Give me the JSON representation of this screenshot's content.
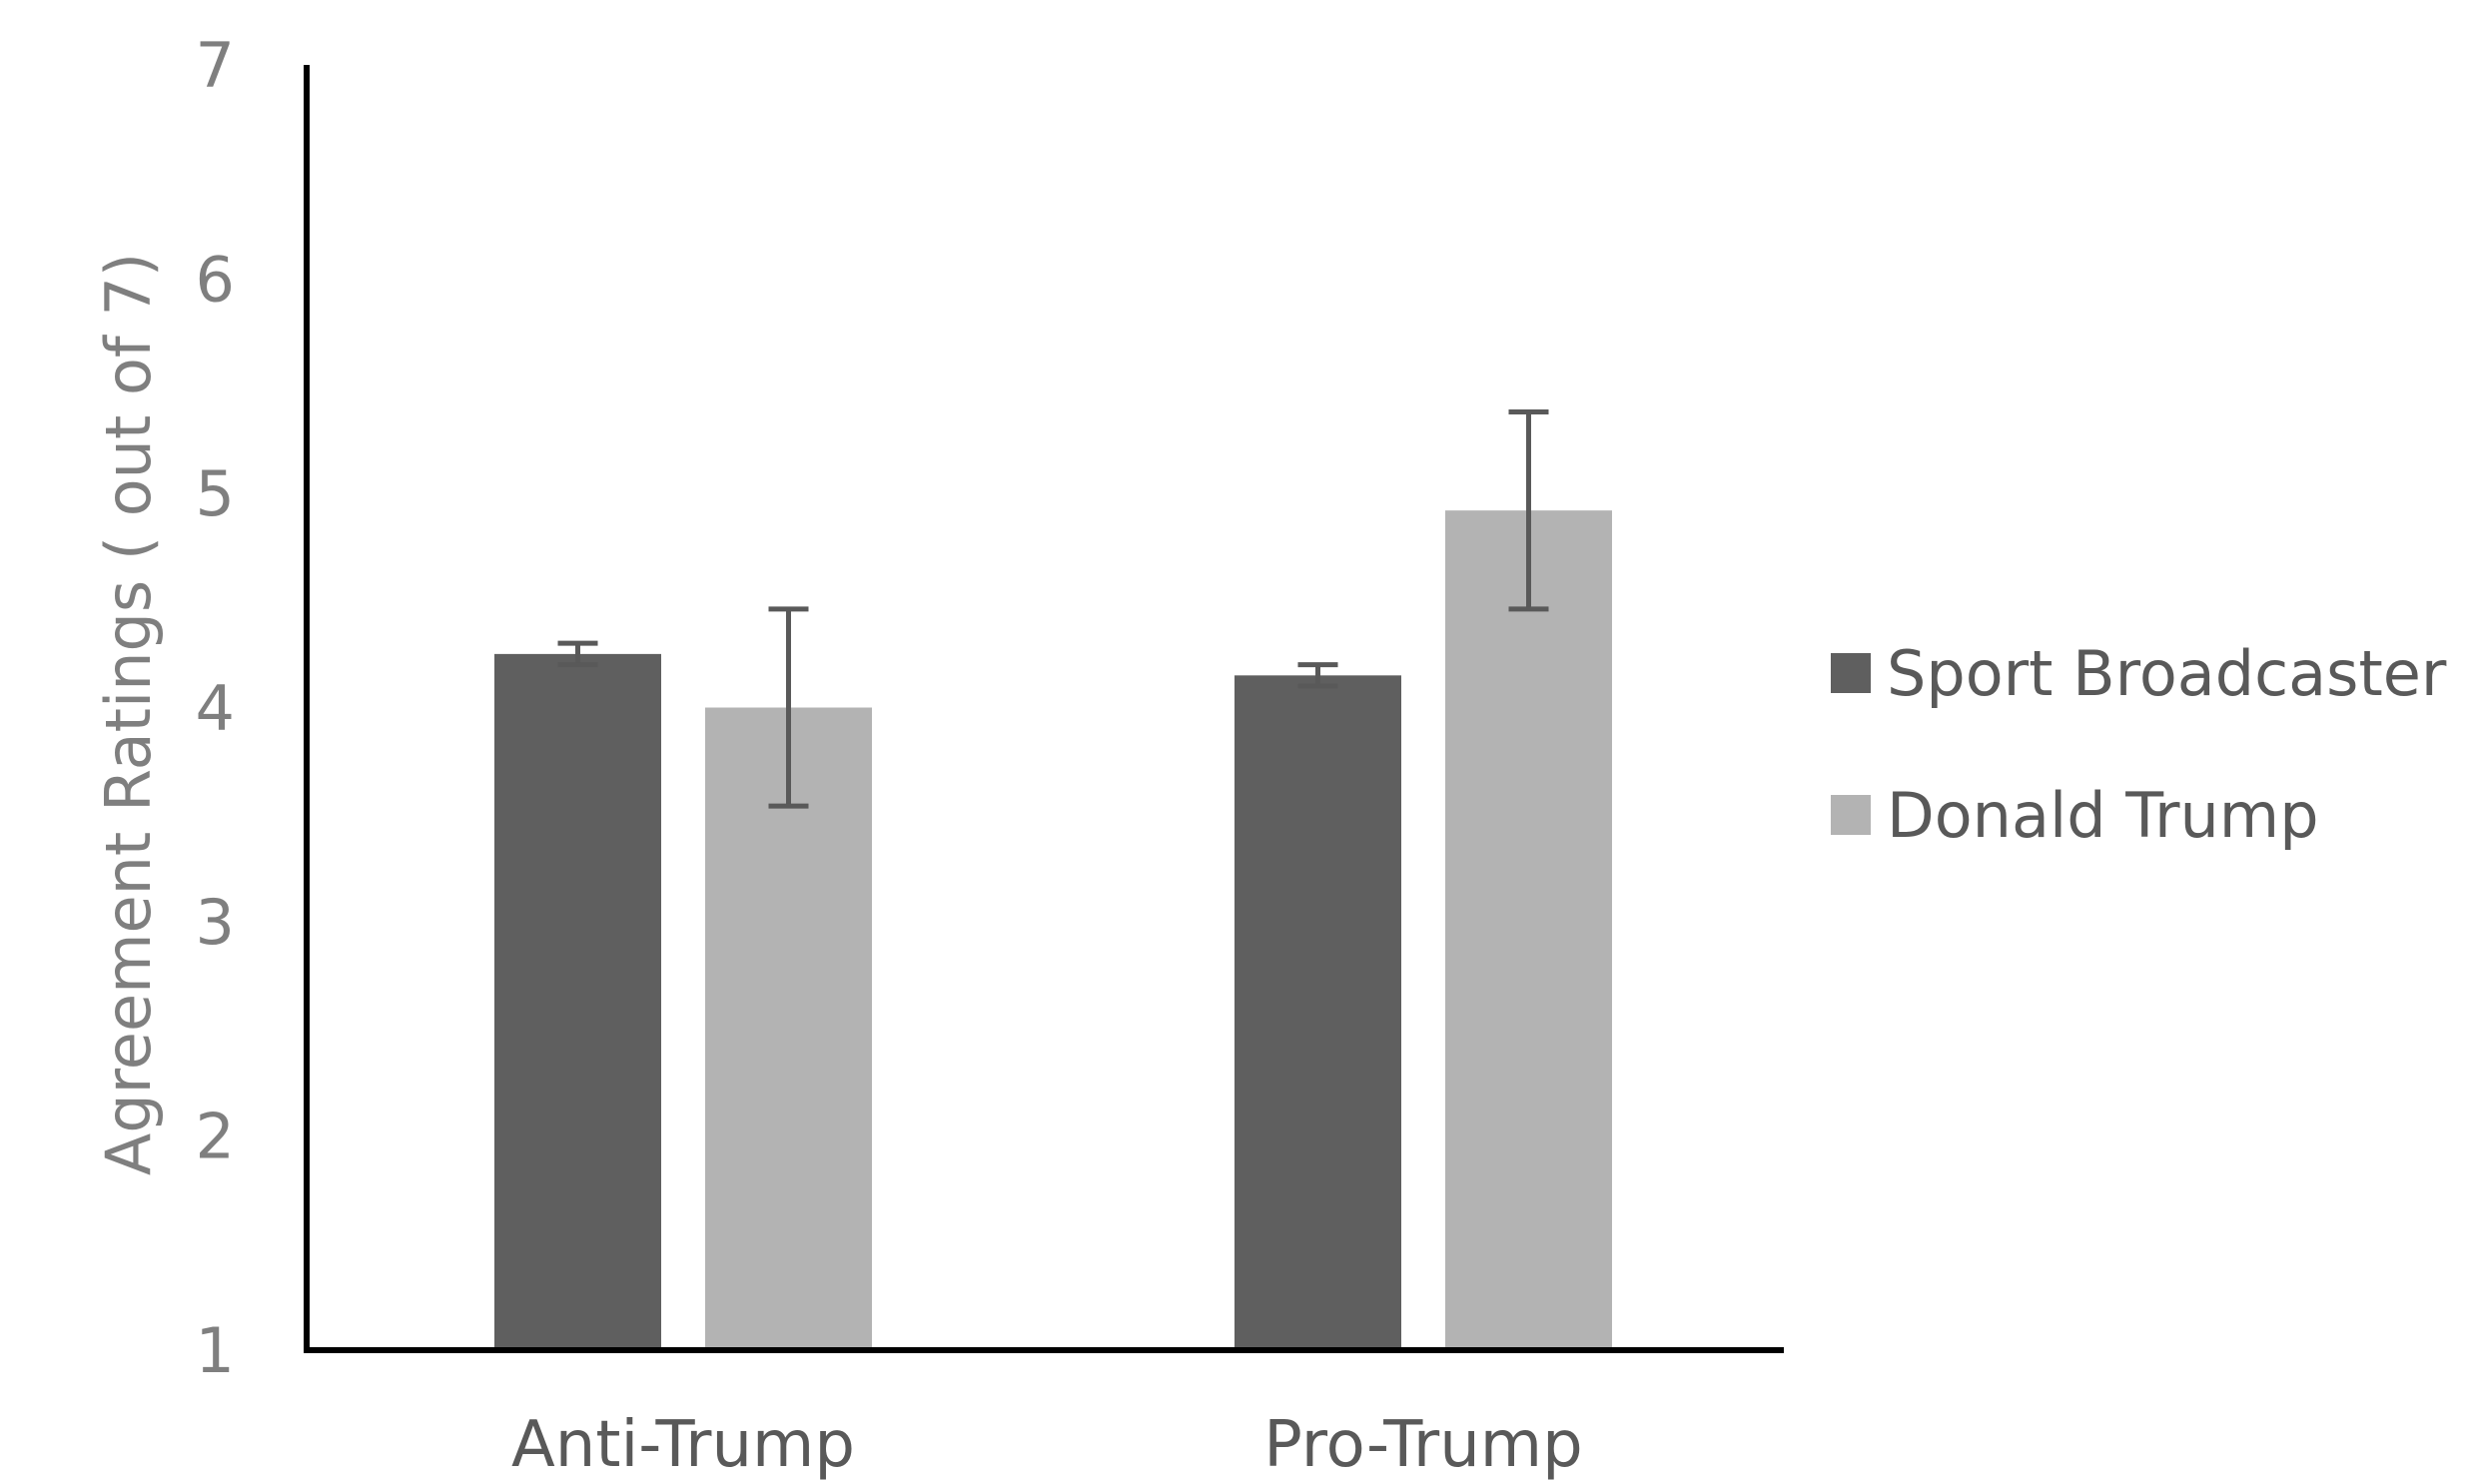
{
  "chart_data": {
    "type": "bar",
    "title": "",
    "xlabel": "",
    "ylabel": "Agreement Ratings ( out of 7)",
    "ylim": [
      1,
      7
    ],
    "yticks": [
      1,
      2,
      3,
      4,
      5,
      6,
      7
    ],
    "grid": false,
    "legend_position": "right",
    "categories": [
      "Anti-Trump",
      "Pro-Trump"
    ],
    "series": [
      {
        "name": "Sport Broadcaster",
        "values": [
          4.25,
          4.15
        ],
        "error": [
          0.05,
          0.05
        ],
        "color": "#5f5f5f"
      },
      {
        "name": "Donald Trump",
        "values": [
          4.0,
          4.92
        ],
        "error": [
          0.46,
          0.46
        ],
        "color": "#b3b3b3"
      }
    ],
    "axis_color": "#000000",
    "errorbar_color": "#595959"
  }
}
